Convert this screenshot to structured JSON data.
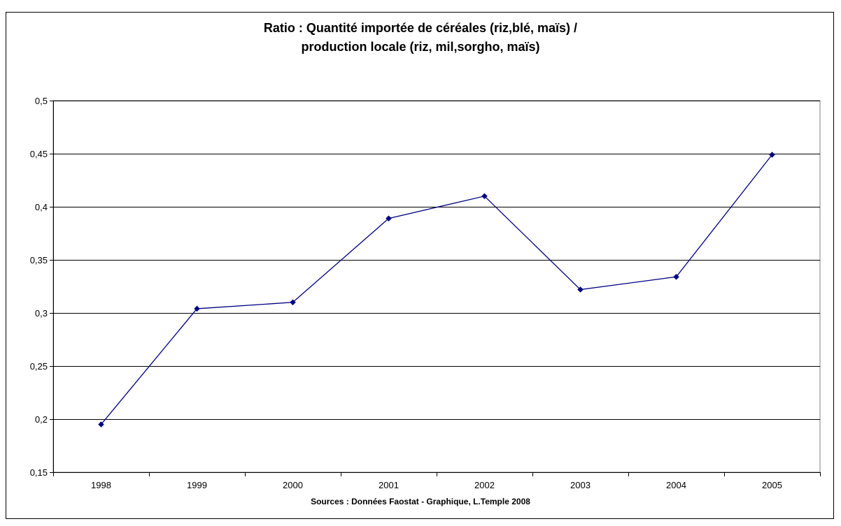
{
  "chart_data": {
    "type": "line",
    "title_line1": "Ratio : Quantité importée de céréales (riz,blé, maïs) /",
    "title_line2": "production locale (riz, mil,sorgho, maïs)",
    "xlabel": "Sources : Données Faostat - Graphique, L.Temple 2008",
    "ylabel": "",
    "categories": [
      "1998",
      "1999",
      "2000",
      "2001",
      "2002",
      "2003",
      "2004",
      "2005"
    ],
    "series": [
      {
        "values": [
          0.195,
          0.304,
          0.31,
          0.389,
          0.41,
          0.322,
          0.334,
          0.449
        ]
      }
    ],
    "ylim": [
      0.15,
      0.5
    ],
    "yticks": [
      0.15,
      0.2,
      0.25,
      0.3,
      0.35,
      0.4,
      0.45,
      0.5
    ],
    "ytick_labels": [
      "0,15",
      "0,2",
      "0,25",
      "0,3",
      "0,35",
      "0,4",
      "0,45",
      "0,5"
    ],
    "grid": true,
    "legend": "none",
    "line_color": "#000080",
    "marker_color": "#000080"
  }
}
